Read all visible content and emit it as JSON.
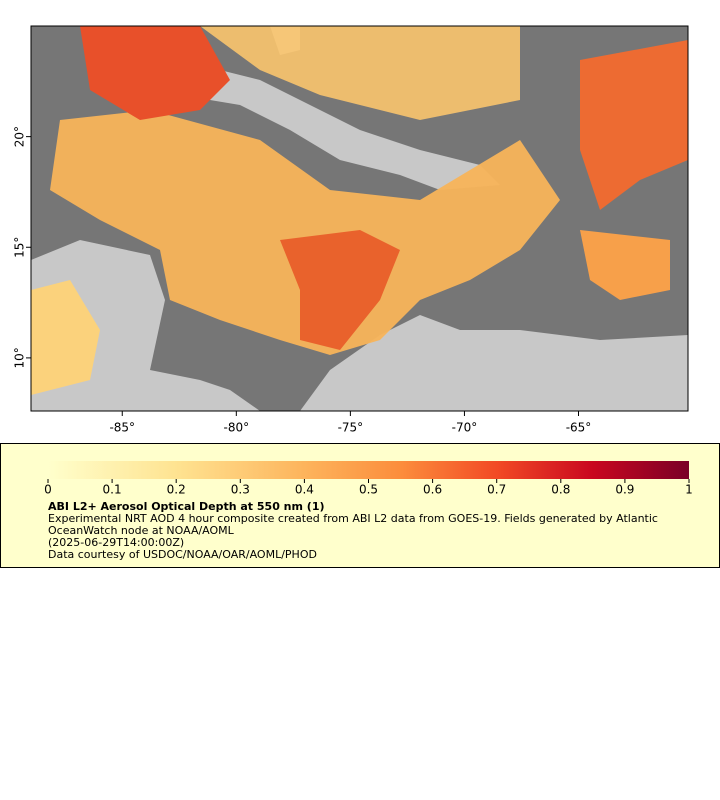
{
  "map": {
    "xaxis": {
      "lim": [
        -89,
        -60.2
      ],
      "ticks": [
        {
          "value": -85,
          "label": "-85°"
        },
        {
          "value": -80,
          "label": "-80°"
        },
        {
          "value": -75,
          "label": "-75°"
        },
        {
          "value": -70,
          "label": "-70°"
        },
        {
          "value": -65,
          "label": "-65°"
        }
      ]
    },
    "yaxis": {
      "lim": [
        7.6,
        25
      ],
      "ticks": [
        {
          "value": 10,
          "label": "10°"
        },
        {
          "value": 15,
          "label": "15°"
        },
        {
          "value": 20,
          "label": "20°"
        }
      ]
    }
  },
  "legend": {
    "colorbar": {
      "lim": [
        0,
        1
      ],
      "ticks": [
        0,
        0.1,
        0.2,
        0.3,
        0.4,
        0.5,
        0.6,
        0.7,
        0.8,
        0.9,
        1
      ]
    },
    "title": "ABI L2+ Aerosol Optical Depth at 550 nm (1)",
    "description": "Experimental NRT AOD 4 hour composite created from ABI L2 data from GOES-19. Fields generated by Atlantic OceanWatch node at NOAA/AOML",
    "time": "(2025-06-29T14:00:00Z)",
    "credit": "Data courtesy of USDOC/NOAA/OAR/AOML/PHOD"
  }
}
